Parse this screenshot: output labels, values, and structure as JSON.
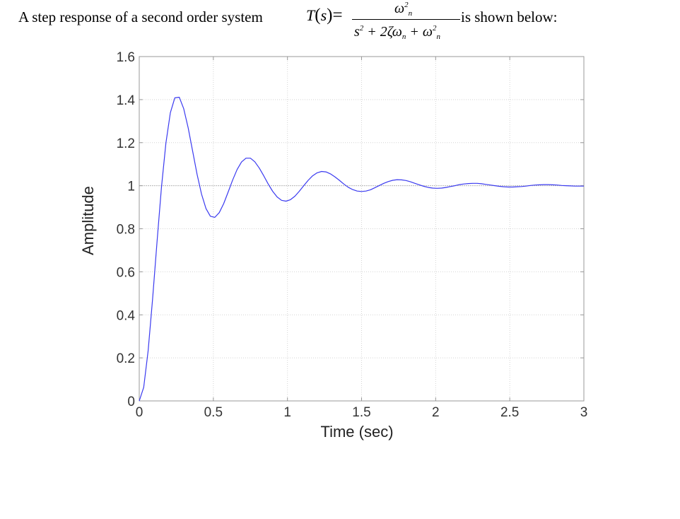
{
  "statement": {
    "before": "A step response of a second order system",
    "after": "is shown below:",
    "tf_name": "T",
    "tf_var": "s",
    "numerator": "ω",
    "numerator_sup": "2",
    "numerator_sub": "n",
    "denominator_s": "s",
    "denominator_s_sup": "2",
    "denominator_mid": "+ 2ζω",
    "denominator_mid_sub": "n",
    "denominator_end": "+ ω",
    "denominator_end_sup": "2",
    "denominator_end_sub": "n"
  },
  "chart_data": {
    "type": "line",
    "title": "",
    "xlabel": "Time (sec)",
    "ylabel": "Amplitude",
    "xlim": [
      0,
      3
    ],
    "ylim": [
      0,
      1.6
    ],
    "x_ticks": [
      0,
      0.5,
      1,
      1.5,
      2,
      2.5,
      3
    ],
    "x_tick_labels": [
      "0",
      "0.5",
      "1",
      "1.5",
      "2",
      "2.5",
      "3"
    ],
    "y_ticks": [
      0,
      0.2,
      0.4,
      0.6,
      0.8,
      1,
      1.2,
      1.4,
      1.6
    ],
    "y_tick_labels": [
      "0",
      "0.2",
      "0.4",
      "0.6",
      "0.8",
      "1",
      "1.2",
      "1.4",
      "1.6"
    ],
    "grid": true,
    "reference_line": 1,
    "line_color": "#3a3af0",
    "series": [
      {
        "x": [
          0,
          0.03,
          0.06,
          0.09,
          0.12,
          0.15,
          0.18,
          0.21,
          0.24,
          0.27,
          0.3,
          0.33,
          0.36,
          0.39,
          0.42,
          0.45,
          0.48,
          0.51,
          0.54,
          0.57,
          0.6,
          0.63,
          0.66,
          0.69,
          0.72,
          0.75,
          0.78,
          0.81,
          0.84,
          0.87,
          0.9,
          0.93,
          0.96,
          0.99,
          1.02,
          1.05,
          1.08,
          1.11,
          1.14,
          1.17,
          1.2,
          1.23,
          1.26,
          1.29,
          1.32,
          1.35,
          1.38,
          1.41,
          1.44,
          1.47,
          1.5,
          1.53,
          1.56,
          1.59,
          1.62,
          1.65,
          1.68,
          1.71,
          1.74,
          1.77,
          1.8,
          1.83,
          1.86,
          1.89,
          1.92,
          1.95,
          1.98,
          2.01,
          2.04,
          2.07,
          2.1,
          2.13,
          2.16,
          2.19,
          2.22,
          2.25,
          2.28,
          2.31,
          2.34,
          2.37,
          2.4,
          2.43,
          2.46,
          2.49,
          2.52,
          2.55,
          2.58,
          2.61,
          2.64,
          2.67,
          2.7,
          2.73,
          2.76,
          2.79,
          2.82,
          2.85,
          2.88,
          2.91,
          2.94,
          2.97,
          3.0
        ],
        "y": [
          0,
          0.063,
          0.234,
          0.475,
          0.741,
          0.992,
          1.198,
          1.339,
          1.408,
          1.411,
          1.358,
          1.269,
          1.161,
          1.053,
          0.961,
          0.894,
          0.858,
          0.853,
          0.875,
          0.917,
          0.971,
          1.026,
          1.075,
          1.11,
          1.128,
          1.128,
          1.111,
          1.082,
          1.046,
          1.008,
          0.974,
          0.948,
          0.932,
          0.928,
          0.935,
          0.951,
          0.974,
          1.0,
          1.025,
          1.046,
          1.06,
          1.066,
          1.064,
          1.055,
          1.041,
          1.025,
          1.008,
          0.993,
          0.982,
          0.975,
          0.973,
          0.975,
          0.981,
          0.991,
          1.001,
          1.011,
          1.019,
          1.025,
          1.028,
          1.027,
          1.024,
          1.018,
          1.011,
          1.004,
          0.997,
          0.992,
          0.989,
          0.988,
          0.989,
          0.992,
          0.996,
          1.0,
          1.005,
          1.008,
          1.01,
          1.011,
          1.011,
          1.009,
          1.006,
          1.003,
          1.0,
          0.997,
          0.995,
          0.994,
          0.994,
          0.995,
          0.996,
          0.998,
          1.001,
          1.003,
          1.004,
          1.005,
          1.005,
          1.004,
          1.003,
          1.001,
          1.0,
          0.999,
          0.998,
          0.998,
          0.998
        ]
      }
    ]
  }
}
